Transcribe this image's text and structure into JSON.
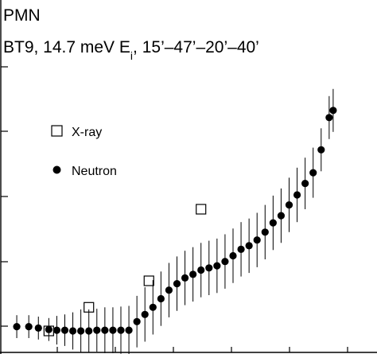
{
  "chart_data": {
    "type": "scatter",
    "title_line1": "PMN",
    "title_line2_main": "BT9, 14.7 meV E",
    "title_line2_sub": "i",
    "title_line2_tail": ", 15’–47’–20’–40’",
    "xlabel": "",
    "ylabel": "",
    "xlim": [
      0,
      42
    ],
    "ylim": [
      0,
      38
    ],
    "legend": {
      "position": "upper-left"
    },
    "series": [
      {
        "name": "X-ray",
        "marker": "open-square",
        "x": [
          5.0,
          10.0,
          17.5,
          24.0
        ],
        "y": [
          3.0,
          6.3,
          10.0,
          20.0
        ]
      },
      {
        "name": "Neutron",
        "marker": "filled-circle",
        "x": [
          1.0,
          2.5,
          3.7,
          5.0,
          6.0,
          7.0,
          8.0,
          9.0,
          10.0,
          11.0,
          12.0,
          13.0,
          14.0,
          15.0,
          16.0,
          17.0,
          18.0,
          19.0,
          20.0,
          21.0,
          22.0,
          23.0,
          24.0,
          25.0,
          26.0,
          27.0,
          28.0,
          29.0,
          30.0,
          31.0,
          32.0,
          33.0,
          34.0,
          35.0,
          36.0,
          37.0,
          38.0,
          39.0,
          40.0,
          40.5
        ],
        "y": [
          3.6,
          3.6,
          3.4,
          3.2,
          3.1,
          3.1,
          3.0,
          3.0,
          3.0,
          3.1,
          3.1,
          3.1,
          3.1,
          3.1,
          4.3,
          5.3,
          6.3,
          7.5,
          8.7,
          9.6,
          10.4,
          10.9,
          11.5,
          11.8,
          12.1,
          12.7,
          13.5,
          14.4,
          14.9,
          15.7,
          16.8,
          18.1,
          19.1,
          20.6,
          22.0,
          23.6,
          25.1,
          28.3,
          32.8,
          33.8
        ],
        "yerr": [
          1.6,
          1.6,
          1.6,
          1.6,
          2.0,
          2.2,
          2.6,
          3.0,
          3.0,
          3.0,
          3.2,
          3.2,
          3.3,
          3.4,
          3.6,
          3.8,
          3.8,
          3.8,
          3.8,
          3.8,
          3.8,
          3.8,
          3.8,
          3.8,
          3.8,
          3.8,
          3.8,
          3.8,
          3.8,
          3.8,
          3.8,
          3.8,
          3.8,
          3.8,
          3.8,
          3.6,
          3.5,
          3.0,
          3.0,
          3.0
        ]
      }
    ]
  }
}
